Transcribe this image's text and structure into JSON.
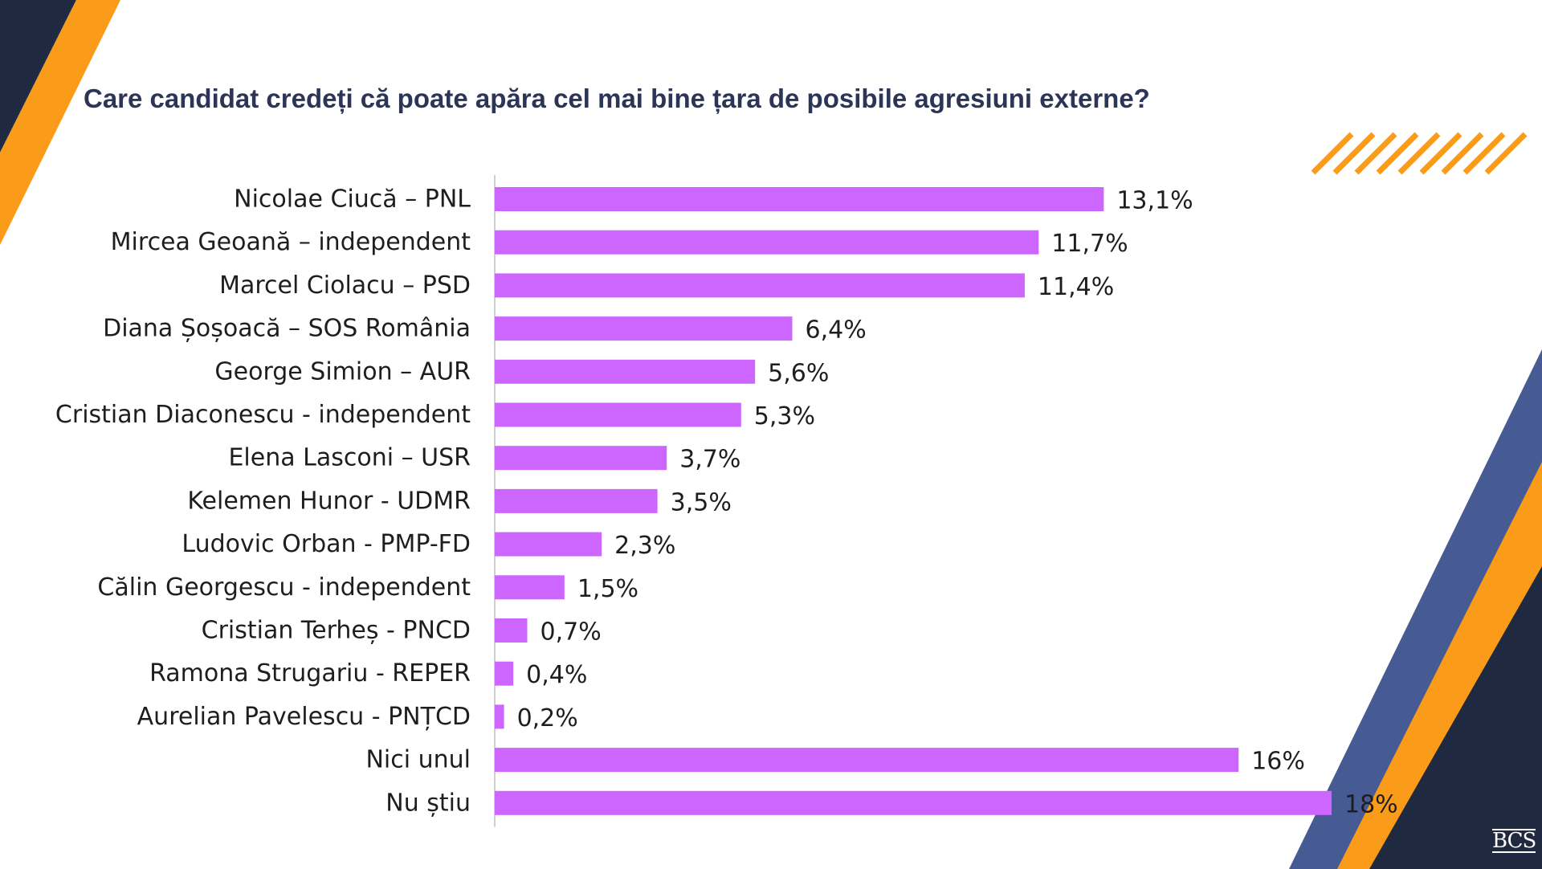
{
  "colors": {
    "bar": "#cc66ff",
    "navy": "#1f2940",
    "orange": "#fb9b1a",
    "slate": "#465a93",
    "title": "#2c3558",
    "label": "#1e1e1e"
  },
  "logo": "BCS",
  "chart_data": {
    "type": "bar",
    "orientation": "horizontal",
    "title": "Care candidat credeți că poate apăra cel mai bine țara de posibile agresiuni externe?",
    "xlabel": "",
    "ylabel": "",
    "xlim": [
      0,
      18
    ],
    "grid": false,
    "legend": "none",
    "categories": [
      "Nicolae Ciucă – PNL",
      "Mircea Geoană – independent",
      "Marcel Ciolacu – PSD",
      "Diana Șoșoacă – SOS România",
      "George Simion – AUR",
      "Cristian Diaconescu - independent",
      "Elena Lasconi – USR",
      "Kelemen Hunor - UDMR",
      "Ludovic Orban - PMP-FD",
      "Călin Georgescu - independent",
      "Cristian Terheș - PNCD",
      "Ramona Strugariu - REPER",
      "Aurelian Pavelescu - PNȚCD",
      "Nici unul",
      "Nu știu"
    ],
    "values": [
      13.1,
      11.7,
      11.4,
      6.4,
      5.6,
      5.3,
      3.7,
      3.5,
      2.3,
      1.5,
      0.7,
      0.4,
      0.2,
      16,
      18
    ],
    "data_labels": [
      "13,1%",
      "11,7%",
      "11,4%",
      "6,4%",
      "5,6%",
      "5,3%",
      "3,7%",
      "3,5%",
      "2,3%",
      "1,5%",
      "0,7%",
      "0,4%",
      "0,2%",
      "16%",
      "18%"
    ]
  }
}
